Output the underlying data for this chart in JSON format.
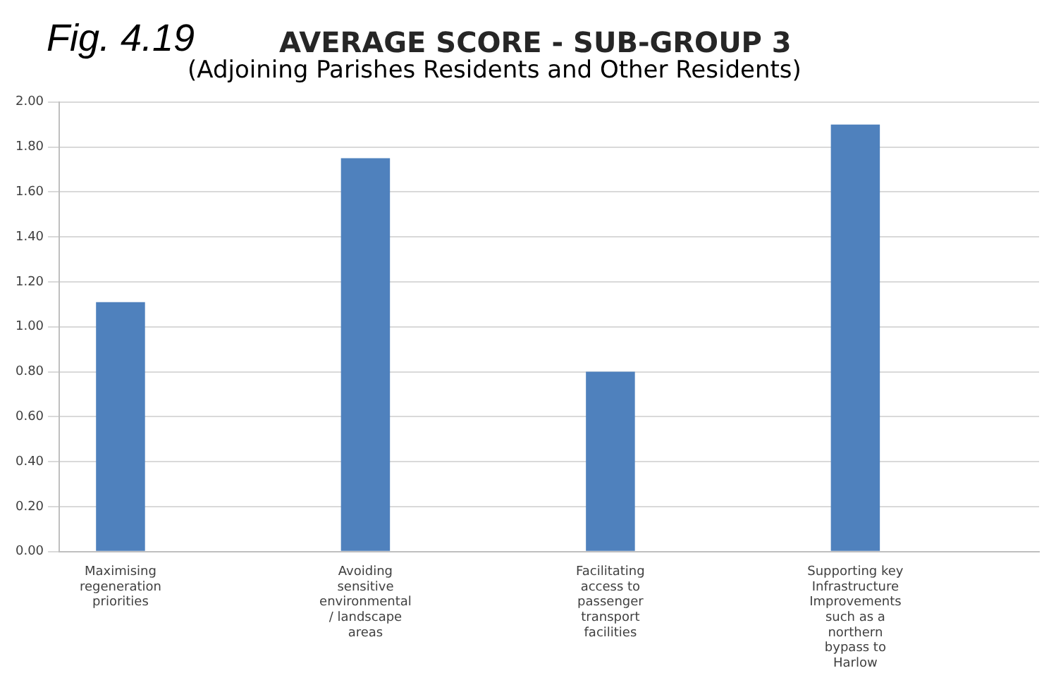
{
  "chart_data": {
    "type": "bar",
    "title": "AVERAGE SCORE - SUB-GROUP 3",
    "subtitle": "(Adjoining Parishes Residents and Other Residents)",
    "annotations": [
      "Fig. 4.19"
    ],
    "categories": [
      "Maximising regeneration priorities",
      null,
      "Avoiding sensitive environmental / landscape areas",
      null,
      "Facilitating access to passenger transport facilities",
      null,
      "Supporting key Infrastructure Improvements such as a northern bypass to Harlow",
      null
    ],
    "values": [
      1.11,
      null,
      1.75,
      null,
      0.8,
      null,
      1.9,
      null
    ],
    "color": "#4f81bd",
    "ylim": [
      0,
      2
    ],
    "yticks": [
      {
        "value": 0,
        "label": "0.00"
      },
      {
        "value": 0.2,
        "label": "0.20"
      },
      {
        "value": 0.4,
        "label": "0.40"
      },
      {
        "value": 0.6,
        "label": "0.60"
      },
      {
        "value": 0.8,
        "label": "0.80"
      },
      {
        "value": 1,
        "label": "1.00"
      },
      {
        "value": 1.2,
        "label": "1.20"
      },
      {
        "value": 1.4,
        "label": "1.40"
      },
      {
        "value": 1.6,
        "label": "1.60"
      },
      {
        "value": 1.8,
        "label": "1.80"
      },
      {
        "value": 2,
        "label": "2.00"
      }
    ],
    "grid": "y",
    "legend": false
  }
}
